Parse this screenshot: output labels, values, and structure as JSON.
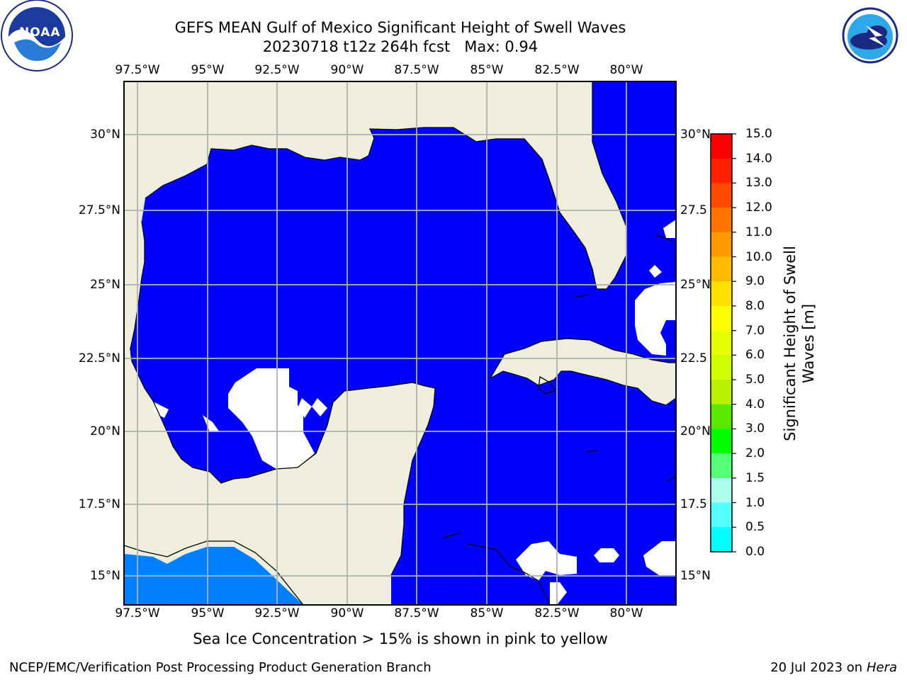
{
  "header": {
    "title_line1": "GEFS MEAN Gulf of Mexico Significant Height of Swell Waves",
    "title_line2": "20230718 t12z 264h fcst   Max: 0.94"
  },
  "logos": {
    "left": {
      "name": "noaa-logo",
      "text": "NOAA",
      "ring_text": "NATIONAL OCEANIC AND ATMOSPHERIC ADMINISTRATION · U.S. DEPARTMENT OF COMMERCE"
    },
    "right": {
      "name": "nws-logo",
      "ring_text": "NATIONAL WEATHER SERVICE"
    }
  },
  "map": {
    "lon_ticks": [
      "97.5°W",
      "95°W",
      "92.5°W",
      "90°W",
      "87.5°W",
      "85°W",
      "82.5°W",
      "80°W"
    ],
    "lat_ticks": [
      "30°N",
      "27.5°N",
      "25°N",
      "22.5°N",
      "20°N",
      "17.5°N",
      "15°N"
    ],
    "lat_ticks_right": [
      "30°N",
      "27.5",
      "25°N",
      "22.5",
      "20°N",
      "17.5",
      "15°N"
    ],
    "colors": {
      "land": "#efeedc",
      "ocean_low": "#0000ff",
      "ocean_mid": "#007fff",
      "grid": "#b0b0b0",
      "no_data": "#ffffff"
    }
  },
  "colorbar": {
    "label_line1": "Significant Height of Swell",
    "label_line2": "Waves [m]",
    "ticks": [
      "15.0",
      "14.0",
      "13.0",
      "12.0",
      "11.0",
      "10.0",
      "9.0",
      "8.0",
      "7.0",
      "6.0",
      "5.0",
      "4.0",
      "3.0",
      "2.0",
      "1.5",
      "1.0",
      "0.5",
      "0.0"
    ],
    "colors": [
      "#ff0000",
      "#ff2000",
      "#ff4a00",
      "#ff7400",
      "#ff9900",
      "#ffbb00",
      "#ffe000",
      "#ffff00",
      "#e8ff00",
      "#d0ff00",
      "#b8f000",
      "#5ae800",
      "#00ff00",
      "#55ff77",
      "#aaffee",
      "#55ffff",
      "#00ffff",
      "#0080ff",
      "#0000ff"
    ]
  },
  "note": "Sea Ice Concentration > 15% is shown in pink to yellow",
  "footer": {
    "left": "NCEP/EMC/Verification Post Processing Product Generation Branch",
    "right_date": "20 Jul 2023 on ",
    "right_host": "Hera"
  }
}
